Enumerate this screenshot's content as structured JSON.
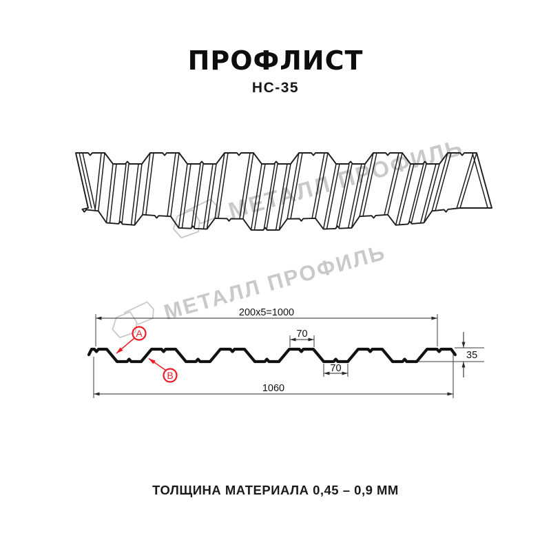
{
  "header": {
    "title": "ПРОФЛИСТ",
    "subtitle": "НС-35"
  },
  "watermark": {
    "brand": "МЕТАЛЛ ПРОФИЛЬ"
  },
  "section_drawing": {
    "dim_coverage": "200x5=1000",
    "dim_crest_width": "70",
    "dim_trough_width": "70",
    "dim_height": "35",
    "dim_overall": "1060",
    "marker_a": "A",
    "marker_b": "B"
  },
  "footer": {
    "thickness_note": "ТОЛЩИНА МАТЕРИАЛА 0,45 – 0,9 ММ"
  },
  "colors": {
    "line": "#1a1a1a",
    "dimension": "#2a2a2a",
    "accent_red": "#ed1c24",
    "watermark_gray": "#c9c9c9",
    "background": "#ffffff"
  }
}
